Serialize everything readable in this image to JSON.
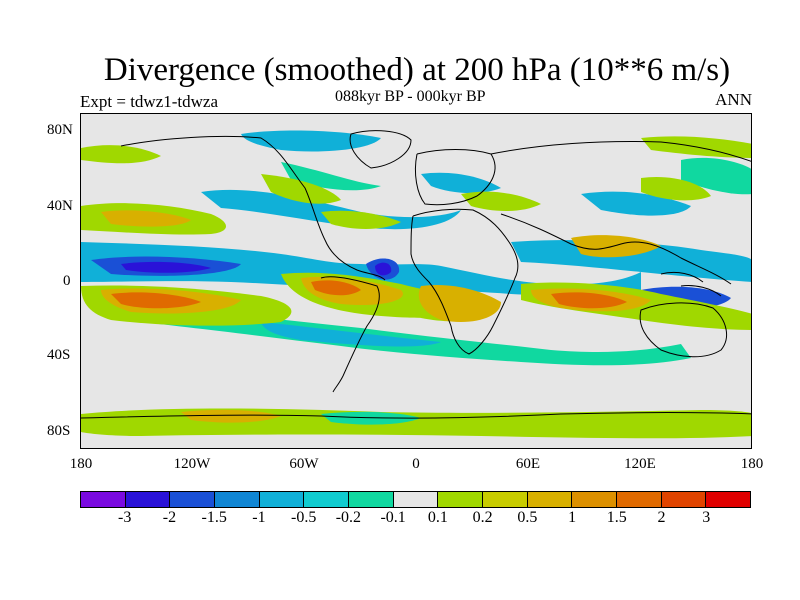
{
  "title": "Divergence (smoothed) at 200 hPa (10**6 m/s)",
  "subtitle_left": "Expt = tdwz1-tdwza",
  "subtitle_center": "088kyr BP - 000kyr BP",
  "subtitle_right": "ANN",
  "lat_labels": [
    "80N",
    "40N",
    "0",
    "40S",
    "80S"
  ],
  "lon_labels": [
    "180",
    "120W",
    "60W",
    "0",
    "60E",
    "120E",
    "180"
  ],
  "colorbar": {
    "colors": [
      "#7a0ae0",
      "#2a12d8",
      "#1a50d6",
      "#1086d4",
      "#10b0d8",
      "#10ccd0",
      "#10d8a0",
      "#e6e6e6",
      "#a0d800",
      "#c8cc00",
      "#d8b000",
      "#dc9000",
      "#e06a00",
      "#e04400",
      "#e00000"
    ],
    "labels": [
      "-3",
      "-2",
      "-1.5",
      "-1",
      "-0.5",
      "-0.2",
      "-0.1",
      "0.1",
      "0.2",
      "0.5",
      "1",
      "1.5",
      "2",
      "3"
    ]
  },
  "colors": {
    "background": "#e6e6e6",
    "strong_convergence": "#2a12d8",
    "convergence": "#10b0d8",
    "weak_convergence": "#10d8a0",
    "weak_divergence": "#a0d800",
    "divergence": "#d8b000",
    "strong_divergence": "#e04400"
  }
}
